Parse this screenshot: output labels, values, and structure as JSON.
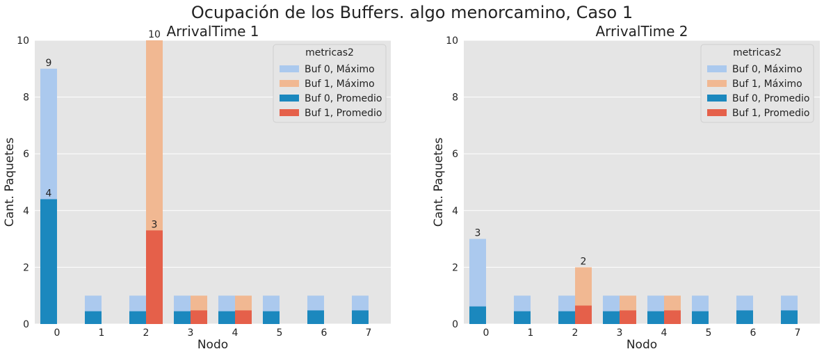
{
  "title": "Ocupación de los Buffers. algo menorcamino, Caso 1",
  "colors": {
    "panel_bg": "#e5e5e5",
    "grid": "#ffffff",
    "buf0_max": "#abc9ee",
    "buf1_max": "#f1b892",
    "buf0_avg": "#1b88be",
    "buf1_avg": "#e5604a"
  },
  "legend_title": "metricas2",
  "legend_items": [
    {
      "label": "Buf 0, Máximo",
      "color": "#abc9ee"
    },
    {
      "label": "Buf 1, Máximo",
      "color": "#f1b892"
    },
    {
      "label": "Buf 0, Promedio",
      "color": "#1b88be"
    },
    {
      "label": "Buf 1, Promedio",
      "color": "#e5604a"
    }
  ],
  "chart_data": [
    {
      "type": "bar",
      "title": "ArrivalTime 1",
      "xlabel": "Nodo",
      "ylabel": "Cant. Paquetes",
      "ylim": [
        0,
        10
      ],
      "yticks": [
        0,
        2,
        4,
        6,
        8,
        10
      ],
      "categories": [
        "0",
        "1",
        "2",
        "3",
        "4",
        "5",
        "6",
        "7"
      ],
      "grid": true,
      "legend": "top-right",
      "series": [
        {
          "name": "Buf 0, Máximo",
          "values": [
            9,
            1,
            1,
            1,
            1,
            1,
            1,
            1
          ]
        },
        {
          "name": "Buf 1, Máximo",
          "values": [
            0,
            0,
            10,
            1,
            1,
            0,
            0,
            0
          ]
        },
        {
          "name": "Buf 0, Promedio",
          "values": [
            4.4,
            0.45,
            0.45,
            0.45,
            0.45,
            0.45,
            0.48,
            0.48
          ]
        },
        {
          "name": "Buf 1, Promedio",
          "values": [
            0,
            0,
            3.3,
            0.48,
            0.48,
            0,
            0,
            0
          ]
        }
      ],
      "annotations": [
        {
          "category": "0",
          "value": 9,
          "text": "9"
        },
        {
          "category": "0",
          "value": 4.4,
          "text": "4"
        },
        {
          "category": "2",
          "value": 10,
          "text": "10"
        },
        {
          "category": "2",
          "value": 3.3,
          "text": "3"
        }
      ]
    },
    {
      "type": "bar",
      "title": "ArrivalTime 2",
      "xlabel": "Nodo",
      "ylabel": "Cant. Paquetes",
      "ylim": [
        0,
        10
      ],
      "yticks": [
        0,
        2,
        4,
        6,
        8,
        10
      ],
      "categories": [
        "0",
        "1",
        "2",
        "3",
        "4",
        "5",
        "6",
        "7"
      ],
      "grid": true,
      "legend": "top-right",
      "series": [
        {
          "name": "Buf 0, Máximo",
          "values": [
            3,
            1,
            1,
            1,
            1,
            1,
            1,
            1
          ]
        },
        {
          "name": "Buf 1, Máximo",
          "values": [
            0,
            0,
            2,
            1,
            1,
            0,
            0,
            0
          ]
        },
        {
          "name": "Buf 0, Promedio",
          "values": [
            0.62,
            0.45,
            0.45,
            0.45,
            0.45,
            0.45,
            0.48,
            0.48
          ]
        },
        {
          "name": "Buf 1, Promedio",
          "values": [
            0,
            0,
            0.65,
            0.48,
            0.48,
            0,
            0,
            0
          ]
        }
      ],
      "annotations": [
        {
          "category": "0",
          "value": 3,
          "text": "3"
        },
        {
          "category": "2",
          "value": 2,
          "text": "2"
        }
      ]
    }
  ]
}
